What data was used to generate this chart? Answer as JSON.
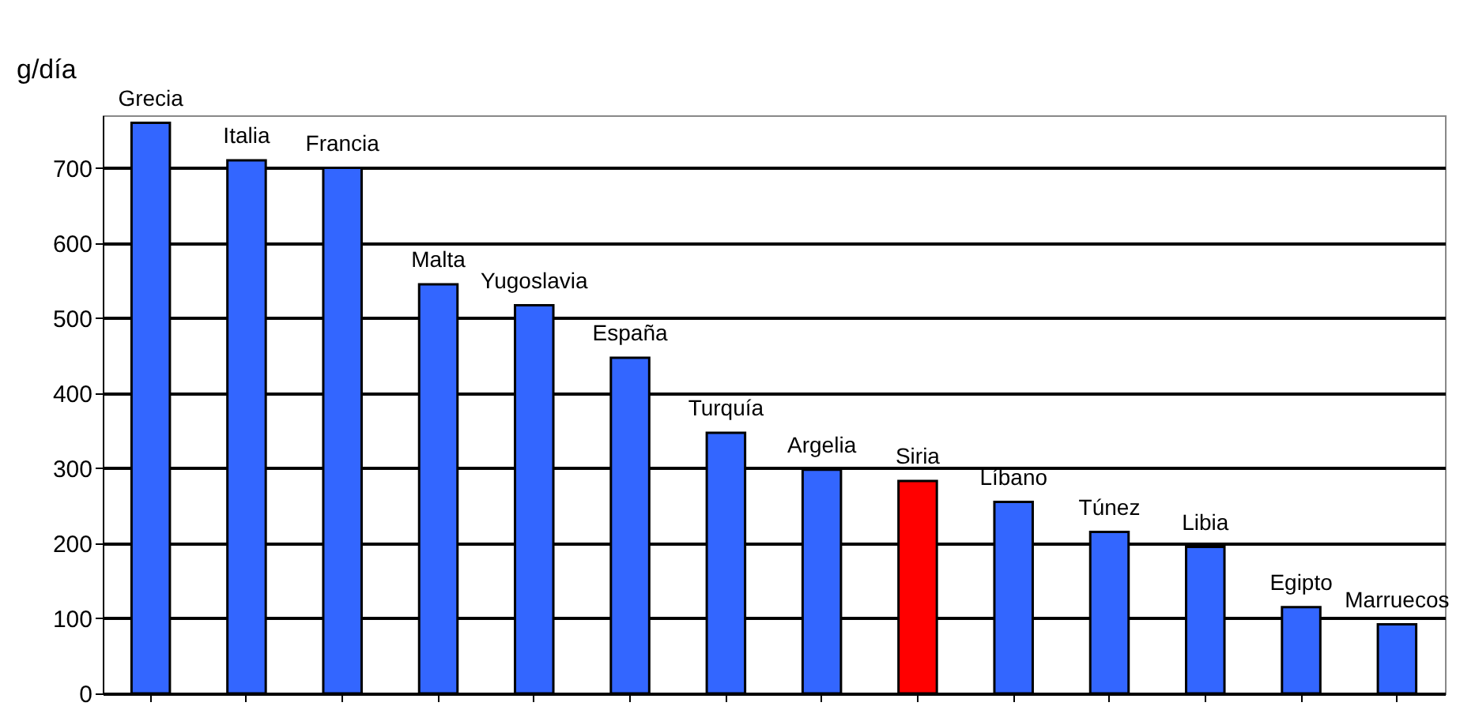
{
  "chart_data": {
    "type": "bar",
    "ylabel": "g/día",
    "categories": [
      "Grecia",
      "Italia",
      "Francia",
      "Malta",
      "Yugoslavia",
      "España",
      "Turquía",
      "Argelia",
      "Siria",
      "Líbano",
      "Túnez",
      "Libia",
      "Egipto",
      "Marruecos"
    ],
    "values": [
      760,
      710,
      700,
      545,
      517,
      447,
      347,
      298,
      283,
      255,
      215,
      195,
      115,
      92
    ],
    "colors": [
      "#3366ff",
      "#3366ff",
      "#3366ff",
      "#3366ff",
      "#3366ff",
      "#3366ff",
      "#3366ff",
      "#3366ff",
      "#ff0000",
      "#3366ff",
      "#3366ff",
      "#3366ff",
      "#3366ff",
      "#3366ff"
    ],
    "ylim": [
      0,
      770
    ],
    "yticks": [
      0,
      100,
      200,
      300,
      400,
      500,
      600,
      700
    ],
    "grid": "y",
    "tick_labels": "y"
  }
}
